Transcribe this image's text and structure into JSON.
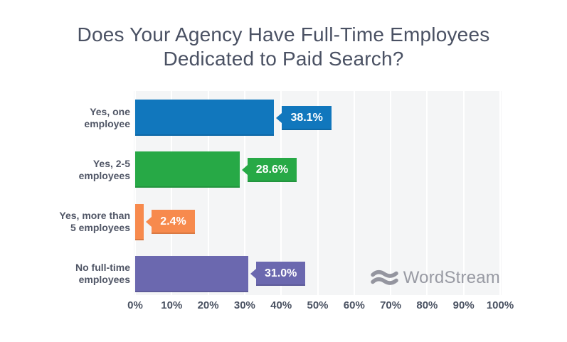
{
  "title": {
    "lines": [
      "Does Your Agency Have Full-Time Employees",
      "Dedicated to Paid Search?"
    ]
  },
  "watermark": {
    "brand": "WordStream",
    "icon": "waves-icon",
    "color": "#94959f"
  },
  "chart_data": {
    "type": "bar",
    "orientation": "horizontal",
    "title": "Does Your Agency Have Full-Time Employees Dedicated to Paid Search?",
    "categories": [
      "Yes, one\nemployee",
      "Yes, 2-5\nemployees",
      "Yes, more than\n5 employees",
      "No full-time\nemployees"
    ],
    "values": [
      38.1,
      28.6,
      2.4,
      31.0
    ],
    "value_labels": [
      "38.1%",
      "28.6%",
      "2.4%",
      "31.0%"
    ],
    "bar_colors": [
      "#1177bd",
      "#27a946",
      "#f78a4d",
      "#6b68af"
    ],
    "x_ticks": [
      "0%",
      "10%",
      "20%",
      "30%",
      "40%",
      "50%",
      "60%",
      "70%",
      "80%",
      "90%",
      "100%"
    ],
    "x_tick_values": [
      0,
      10,
      20,
      30,
      40,
      50,
      60,
      70,
      80,
      90,
      100
    ],
    "xlim": [
      0,
      100
    ],
    "grid": true,
    "legend": false,
    "plot_bg": "#f4f5f6",
    "gridline_color": "#ffffff"
  }
}
